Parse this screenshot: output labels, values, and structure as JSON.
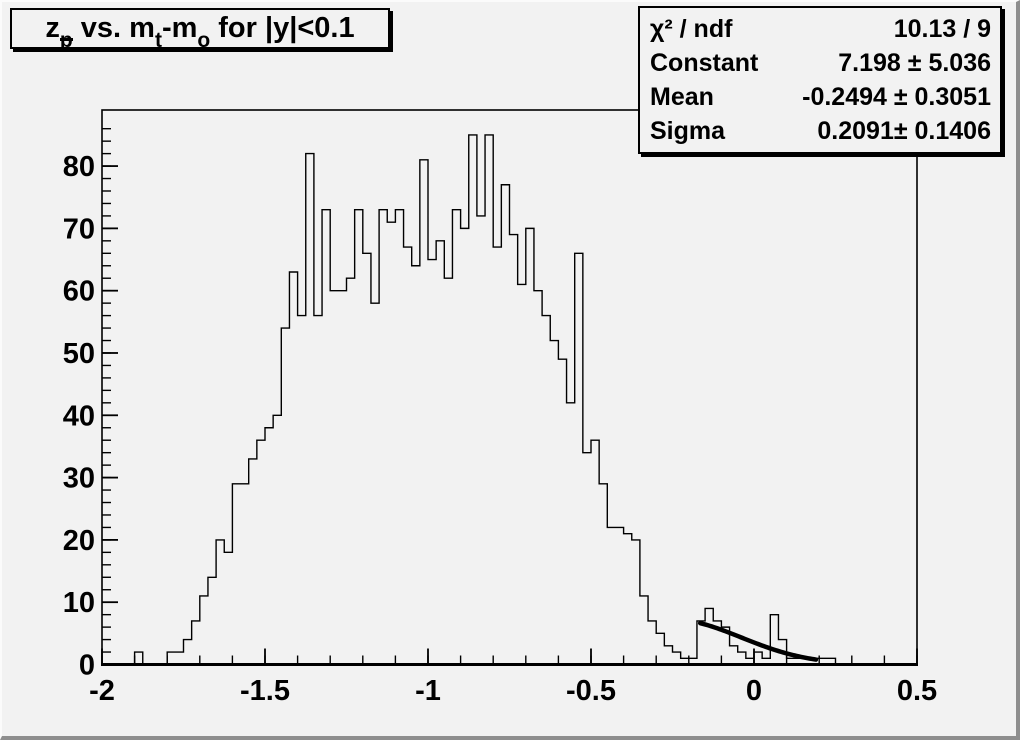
{
  "title": {
    "segments": [
      {
        "t": "z",
        "s": "n"
      },
      {
        "t": "p",
        "s": "subbar"
      },
      {
        "t": " vs. m",
        "s": "n"
      },
      {
        "t": "t",
        "s": "sub"
      },
      {
        "t": "-m",
        "s": "n"
      },
      {
        "t": "o",
        "s": "sub"
      },
      {
        "t": " for |y|<0.1",
        "s": "n"
      }
    ],
    "plain": "z_p vs. m_t-m_o for |y|<0.1"
  },
  "stats_box": {
    "rows": [
      {
        "label": "χ² / ndf",
        "value": "10.13 / 9"
      },
      {
        "label": "Constant",
        "value": "7.198 ± 5.036"
      },
      {
        "label": "Mean",
        "value": "-0.2494 ± 0.3051"
      },
      {
        "label": "Sigma",
        "value": "0.2091± 0.1406"
      }
    ]
  },
  "chart_data": {
    "type": "bar",
    "subtype": "histogram-step",
    "title": "z_p vs. m_t-m_o for |y|<0.1",
    "xlabel": "",
    "ylabel": "",
    "xlim": [
      -2,
      0.5
    ],
    "ylim": [
      0,
      89
    ],
    "grid": false,
    "bin_start": -2,
    "bin_width": 0.025,
    "n_bins": 100,
    "values": [
      0,
      0,
      0,
      0,
      2,
      0,
      0,
      0,
      2,
      2,
      4,
      7,
      11,
      14,
      20,
      18,
      29,
      29,
      33,
      36,
      38,
      40,
      54,
      63,
      56,
      82,
      56,
      73,
      60,
      60,
      62,
      73,
      66,
      58,
      73,
      71,
      73,
      67,
      64,
      81,
      65,
      68,
      62,
      73,
      70,
      85,
      72,
      85,
      67,
      77,
      69,
      61,
      70,
      60,
      56,
      52,
      49,
      42,
      66,
      34,
      36,
      29,
      22,
      22,
      21,
      20,
      11,
      7,
      5,
      3,
      2,
      1,
      1,
      7,
      9,
      7,
      6,
      3,
      2,
      1,
      2,
      1,
      8,
      4,
      1,
      1,
      1,
      1,
      1,
      1,
      0,
      0,
      0,
      0,
      0,
      0,
      0,
      0,
      0,
      0
    ],
    "x_major_ticks": [
      {
        "v": -2,
        "label": "-2"
      },
      {
        "v": -1.5,
        "label": "-1.5"
      },
      {
        "v": -1,
        "label": "-1"
      },
      {
        "v": -0.5,
        "label": "-0.5"
      },
      {
        "v": 0,
        "label": "0"
      },
      {
        "v": 0.5,
        "label": "0.5"
      }
    ],
    "x_minor_step": 0.1,
    "y_major_ticks": [
      {
        "v": 0,
        "label": "0"
      },
      {
        "v": 10,
        "label": "10"
      },
      {
        "v": 20,
        "label": "20"
      },
      {
        "v": 30,
        "label": "30"
      },
      {
        "v": 40,
        "label": "40"
      },
      {
        "v": 50,
        "label": "50"
      },
      {
        "v": 60,
        "label": "60"
      },
      {
        "v": 70,
        "label": "70"
      },
      {
        "v": 80,
        "label": "80"
      }
    ],
    "y_minor_step": 2,
    "fit": {
      "type": "gaussian",
      "constant": 7.198,
      "mean": -0.2494,
      "sigma": 0.2091,
      "range": [
        -0.165,
        0.19
      ]
    },
    "legend": null,
    "colors": {
      "line": "#000000",
      "fit_curve": "#000000",
      "background": "#f2f2f2",
      "frame": "#000000"
    }
  }
}
